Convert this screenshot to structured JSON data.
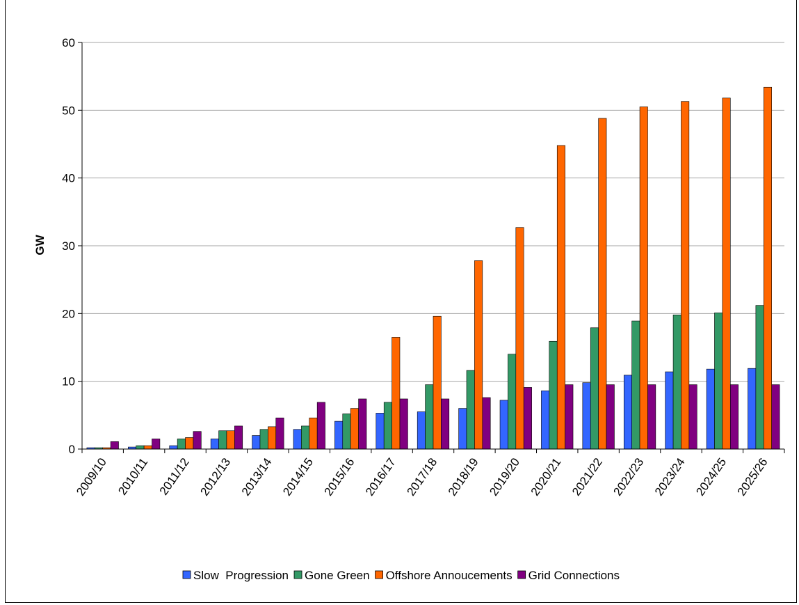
{
  "chart_data": {
    "type": "bar",
    "title": "",
    "xlabel": "",
    "ylabel": "GW",
    "ylim": [
      0,
      60
    ],
    "yticks": [
      0,
      10,
      20,
      30,
      40,
      50,
      60
    ],
    "grid": true,
    "legend_position": "bottom",
    "categories": [
      "2009/10",
      "2010/11",
      "2011/12",
      "2012/13",
      "2013/14",
      "2014/15",
      "2015/16",
      "2016/17",
      "2017/18",
      "2018/19",
      "2019/20",
      "2020/21",
      "2021/22",
      "2022/23",
      "2023/24",
      "2024/25",
      "2025/26"
    ],
    "series": [
      {
        "name": "Slow  Progression",
        "color": "#3366ff",
        "values": [
          0.2,
          0.3,
          0.5,
          1.5,
          2.0,
          2.9,
          4.1,
          5.3,
          5.5,
          6.0,
          7.2,
          8.6,
          9.8,
          10.9,
          11.4,
          11.8,
          11.9
        ]
      },
      {
        "name": "Gone Green",
        "color": "#339966",
        "values": [
          0.2,
          0.5,
          1.5,
          2.7,
          2.9,
          3.4,
          5.2,
          6.9,
          9.5,
          11.6,
          14.0,
          15.9,
          17.9,
          18.9,
          19.8,
          20.1,
          21.2
        ]
      },
      {
        "name": "Offshore Annoucements",
        "color": "#ff6600",
        "values": [
          0.2,
          0.5,
          1.7,
          2.7,
          3.3,
          4.6,
          6.0,
          16.5,
          19.6,
          27.8,
          32.7,
          44.8,
          48.8,
          50.5,
          51.3,
          51.8,
          53.4
        ]
      },
      {
        "name": "Grid Connections",
        "color": "#800080",
        "values": [
          1.1,
          1.5,
          2.6,
          3.4,
          4.6,
          6.9,
          7.4,
          7.4,
          7.4,
          7.6,
          9.1,
          9.5,
          9.5,
          9.5,
          9.5,
          9.5,
          9.5
        ]
      }
    ]
  }
}
